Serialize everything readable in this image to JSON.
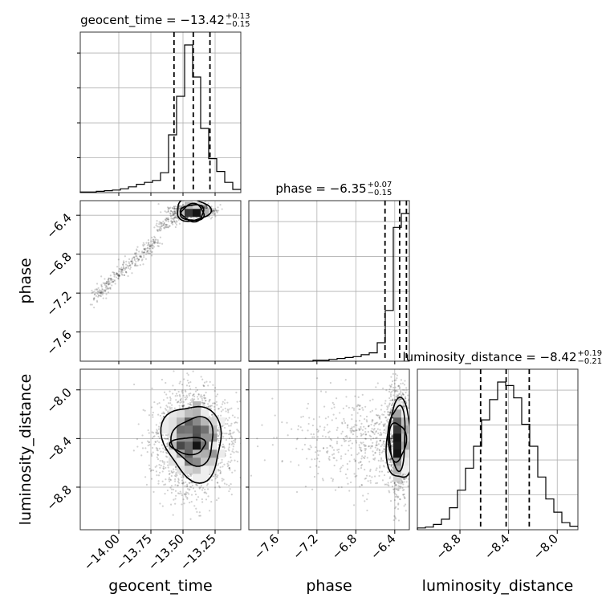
{
  "chart_data": {
    "type": "corner",
    "parameters": [
      "geocent_time",
      "phase",
      "luminosity_distance"
    ],
    "axis_labels": {
      "geocent_time": "geocent_time",
      "phase": "phase",
      "luminosity_distance": "luminosity_distance"
    },
    "ranges": {
      "geocent_time": [
        -14.3,
        -13.05
      ],
      "phase": [
        -7.9,
        -6.25
      ],
      "luminosity_distance": [
        -9.15,
        -7.83
      ]
    },
    "ticks": {
      "geocent_time": {
        "values": [
          -14.0,
          -13.75,
          -13.5,
          -13.25
        ],
        "labels": [
          "−14.00",
          "−13.75",
          "−13.50",
          "−13.25"
        ]
      },
      "phase": {
        "values": [
          -7.6,
          -7.2,
          -6.8,
          -6.4
        ],
        "labels": [
          "−7.6",
          "−7.2",
          "−6.8",
          "−6.4"
        ]
      },
      "luminosity_distance": {
        "values": [
          -8.8,
          -8.4,
          -8.0
        ],
        "labels": [
          "−8.8",
          "−8.4",
          "−8.0"
        ]
      }
    },
    "diagonal_titles": {
      "geocent_time": {
        "text": "geocent_time = −13.42",
        "plus": "+0.13",
        "minus": "−0.15"
      },
      "phase": {
        "text": "phase = −6.35",
        "plus": "+0.07",
        "minus": "−0.15"
      },
      "luminosity_distance": {
        "text": "luminosity_distance = −8.42",
        "plus": "+0.19",
        "minus": "−0.21"
      }
    },
    "quantiles": {
      "geocent_time": [
        -13.57,
        -13.42,
        -13.29
      ],
      "phase": [
        -6.5,
        -6.35,
        -6.28
      ],
      "luminosity_distance": [
        -8.63,
        -8.42,
        -8.23
      ]
    },
    "histograms": {
      "geocent_time": {
        "edges": [
          -14.3,
          -14.2375,
          -14.175,
          -14.1125,
          -14.05,
          -13.9875,
          -13.925,
          -13.8625,
          -13.8,
          -13.7375,
          -13.675,
          -13.6125,
          -13.55,
          -13.4875,
          -13.425,
          -13.3625,
          -13.3,
          -13.2375,
          -13.175,
          -13.1125,
          -13.05
        ],
        "counts": [
          1,
          1,
          2,
          3,
          4,
          6,
          9,
          13,
          16,
          19,
          31,
          90,
          150,
          230,
          180,
          100,
          53,
          33,
          16,
          5
        ]
      },
      "phase": {
        "edges": [
          -7.9,
          -7.8175,
          -7.735,
          -7.6525,
          -7.57,
          -7.4875,
          -7.405,
          -7.3225,
          -7.24,
          -7.1575,
          -7.075,
          -6.9925,
          -6.91,
          -6.8275,
          -6.745,
          -6.6625,
          -6.58,
          -6.4975,
          -6.415,
          -6.3325,
          -6.25
        ],
        "counts": [
          0,
          0,
          0,
          0,
          0,
          0,
          0,
          0,
          1,
          1,
          2,
          3,
          4,
          5,
          7,
          9,
          20,
          55,
          145,
          160
        ]
      },
      "luminosity_distance": {
        "edges": [
          -9.15,
          -9.084,
          -9.018,
          -8.952,
          -8.886,
          -8.82,
          -8.754,
          -8.688,
          -8.622,
          -8.556,
          -8.49,
          -8.424,
          -8.358,
          -8.292,
          -8.226,
          -8.16,
          -8.094,
          -8.028,
          -7.962,
          -7.896,
          -7.83
        ],
        "counts": [
          2,
          3,
          6,
          12,
          25,
          45,
          70,
          95,
          125,
          148,
          168,
          164,
          150,
          120,
          95,
          60,
          35,
          20,
          8,
          4
        ]
      }
    },
    "grid": true,
    "contour_levels": 3
  }
}
